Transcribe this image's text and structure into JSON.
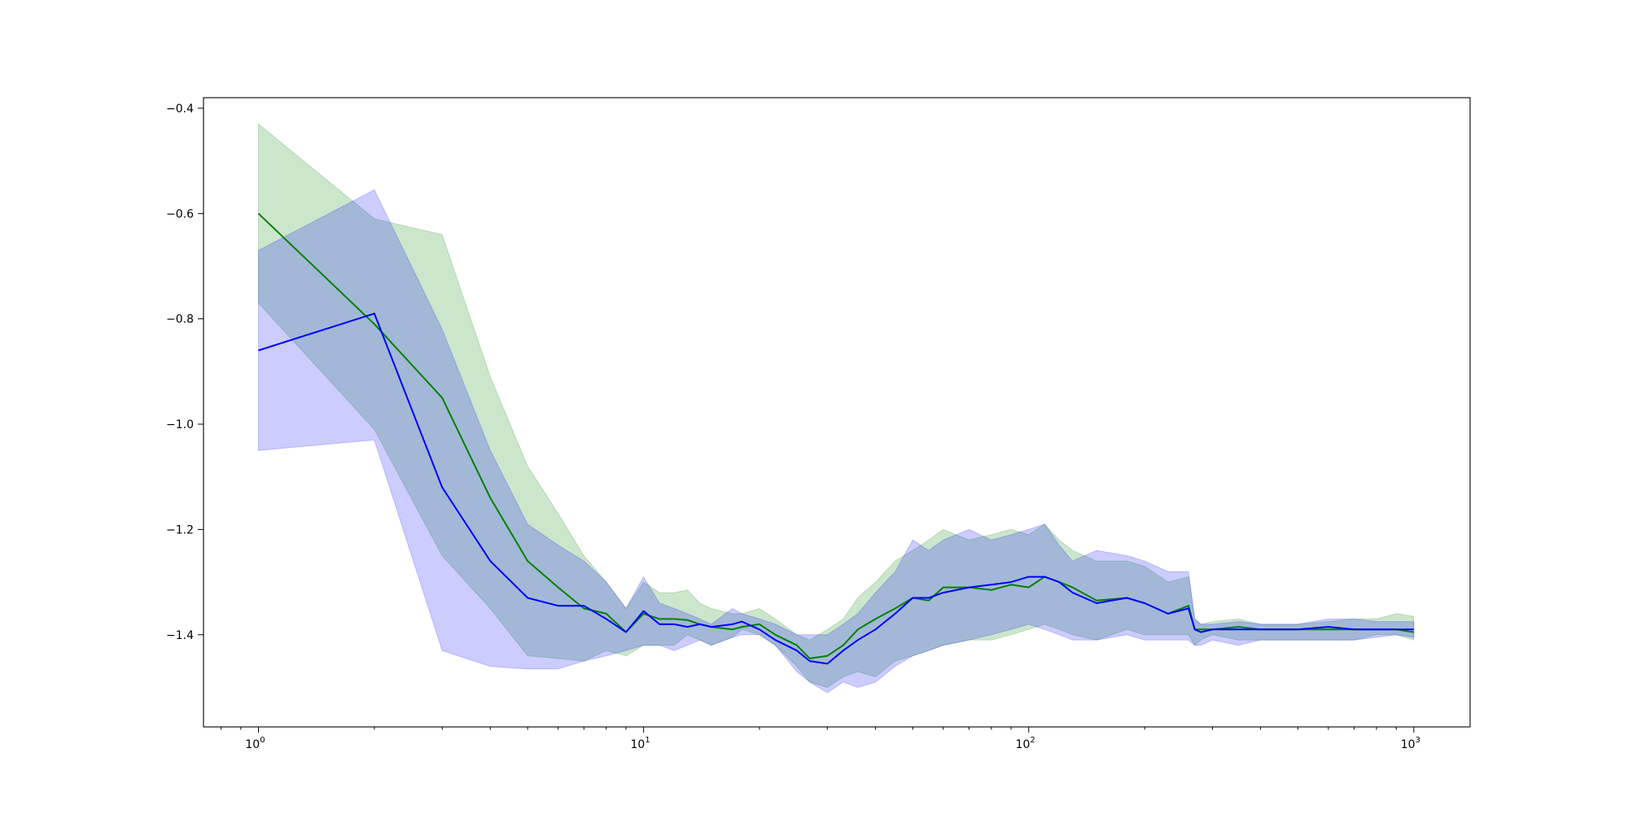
{
  "chart_data": {
    "type": "line",
    "title": "",
    "xlabel": "",
    "ylabel": "",
    "xscale": "log",
    "xlim": [
      0.72,
      1400
    ],
    "ylim": [
      -1.575,
      -0.38
    ],
    "grid": false,
    "legend": "none",
    "colors": {
      "green_line": "#008000",
      "green_band": "#008000",
      "blue_line": "#0000ff",
      "blue_band": "#0000ff"
    },
    "x_ticks": [
      {
        "value": 1,
        "label": "10",
        "exp": "0"
      },
      {
        "value": 10,
        "label": "10",
        "exp": "1"
      },
      {
        "value": 100,
        "label": "10",
        "exp": "2"
      },
      {
        "value": 1000,
        "label": "10",
        "exp": "3"
      }
    ],
    "y_ticks": [
      {
        "value": -0.4,
        "label": "−0.4"
      },
      {
        "value": -0.6,
        "label": "−0.6"
      },
      {
        "value": -0.8,
        "label": "−0.8"
      },
      {
        "value": -1.0,
        "label": "−1.0"
      },
      {
        "value": -1.2,
        "label": "−1.2"
      },
      {
        "value": -1.4,
        "label": "−1.4"
      }
    ],
    "x": [
      1,
      2,
      3,
      4,
      5,
      6,
      7,
      8,
      9,
      10,
      11,
      12,
      13,
      14,
      15,
      17,
      18,
      20,
      22,
      25,
      27,
      30,
      33,
      36,
      40,
      45,
      50,
      55,
      60,
      70,
      80,
      90,
      100,
      110,
      120,
      130,
      150,
      180,
      200,
      230,
      260,
      270,
      280,
      300,
      350,
      400,
      500,
      600,
      700,
      800,
      900,
      1000
    ],
    "series": [
      {
        "color": "green",
        "values": [
          -0.6,
          -0.81,
          -0.95,
          -1.14,
          -1.26,
          -1.31,
          -1.35,
          -1.36,
          -1.395,
          -1.36,
          -1.37,
          -1.37,
          -1.372,
          -1.38,
          -1.385,
          -1.39,
          -1.385,
          -1.38,
          -1.4,
          -1.42,
          -1.445,
          -1.44,
          -1.42,
          -1.39,
          -1.37,
          -1.35,
          -1.33,
          -1.335,
          -1.31,
          -1.31,
          -1.315,
          -1.305,
          -1.31,
          -1.29,
          -1.3,
          -1.31,
          -1.335,
          -1.33,
          -1.34,
          -1.36,
          -1.345,
          -1.39,
          -1.39,
          -1.39,
          -1.385,
          -1.39,
          -1.39,
          -1.39,
          -1.39,
          -1.39,
          -1.39,
          -1.395
        ],
        "lower": [
          -0.77,
          -1.01,
          -1.25,
          -1.35,
          -1.44,
          -1.445,
          -1.45,
          -1.43,
          -1.44,
          -1.42,
          -1.42,
          -1.42,
          -1.4,
          -1.41,
          -1.42,
          -1.405,
          -1.39,
          -1.4,
          -1.42,
          -1.46,
          -1.49,
          -1.5,
          -1.48,
          -1.47,
          -1.48,
          -1.45,
          -1.44,
          -1.43,
          -1.42,
          -1.41,
          -1.41,
          -1.4,
          -1.39,
          -1.38,
          -1.39,
          -1.4,
          -1.41,
          -1.39,
          -1.4,
          -1.4,
          -1.4,
          -1.42,
          -1.41,
          -1.4,
          -1.41,
          -1.41,
          -1.41,
          -1.41,
          -1.41,
          -1.4,
          -1.4,
          -1.41
        ],
        "upper": [
          -0.43,
          -0.61,
          -0.64,
          -0.91,
          -1.08,
          -1.17,
          -1.25,
          -1.3,
          -1.35,
          -1.3,
          -1.32,
          -1.32,
          -1.315,
          -1.34,
          -1.35,
          -1.36,
          -1.36,
          -1.35,
          -1.37,
          -1.4,
          -1.41,
          -1.39,
          -1.37,
          -1.33,
          -1.3,
          -1.26,
          -1.24,
          -1.22,
          -1.2,
          -1.22,
          -1.21,
          -1.2,
          -1.21,
          -1.19,
          -1.22,
          -1.24,
          -1.26,
          -1.26,
          -1.27,
          -1.3,
          -1.29,
          -1.37,
          -1.38,
          -1.375,
          -1.37,
          -1.38,
          -1.38,
          -1.375,
          -1.37,
          -1.37,
          -1.36,
          -1.365
        ]
      },
      {
        "color": "blue",
        "values": [
          -0.86,
          -0.79,
          -1.12,
          -1.26,
          -1.33,
          -1.345,
          -1.345,
          -1.37,
          -1.395,
          -1.355,
          -1.38,
          -1.38,
          -1.385,
          -1.38,
          -1.385,
          -1.38,
          -1.375,
          -1.39,
          -1.41,
          -1.43,
          -1.45,
          -1.455,
          -1.43,
          -1.41,
          -1.39,
          -1.36,
          -1.33,
          -1.33,
          -1.32,
          -1.31,
          -1.305,
          -1.3,
          -1.29,
          -1.29,
          -1.3,
          -1.32,
          -1.34,
          -1.33,
          -1.34,
          -1.36,
          -1.35,
          -1.39,
          -1.395,
          -1.39,
          -1.39,
          -1.39,
          -1.39,
          -1.385,
          -1.39,
          -1.39,
          -1.39,
          -1.39
        ],
        "lower": [
          -1.05,
          -1.03,
          -1.43,
          -1.46,
          -1.465,
          -1.465,
          -1.45,
          -1.44,
          -1.43,
          -1.42,
          -1.42,
          -1.43,
          -1.42,
          -1.41,
          -1.42,
          -1.405,
          -1.4,
          -1.4,
          -1.42,
          -1.47,
          -1.49,
          -1.51,
          -1.49,
          -1.5,
          -1.49,
          -1.46,
          -1.44,
          -1.43,
          -1.42,
          -1.41,
          -1.4,
          -1.39,
          -1.38,
          -1.39,
          -1.4,
          -1.41,
          -1.41,
          -1.4,
          -1.41,
          -1.41,
          -1.41,
          -1.42,
          -1.42,
          -1.41,
          -1.42,
          -1.41,
          -1.41,
          -1.41,
          -1.41,
          -1.405,
          -1.4,
          -1.405
        ],
        "upper": [
          -0.67,
          -0.555,
          -0.82,
          -1.05,
          -1.19,
          -1.23,
          -1.26,
          -1.3,
          -1.35,
          -1.29,
          -1.34,
          -1.35,
          -1.36,
          -1.37,
          -1.38,
          -1.35,
          -1.36,
          -1.37,
          -1.38,
          -1.4,
          -1.4,
          -1.4,
          -1.38,
          -1.36,
          -1.32,
          -1.28,
          -1.22,
          -1.24,
          -1.22,
          -1.2,
          -1.22,
          -1.21,
          -1.2,
          -1.19,
          -1.23,
          -1.26,
          -1.24,
          -1.25,
          -1.26,
          -1.28,
          -1.28,
          -1.37,
          -1.38,
          -1.38,
          -1.375,
          -1.38,
          -1.38,
          -1.37,
          -1.37,
          -1.375,
          -1.375,
          -1.375
        ]
      }
    ]
  }
}
